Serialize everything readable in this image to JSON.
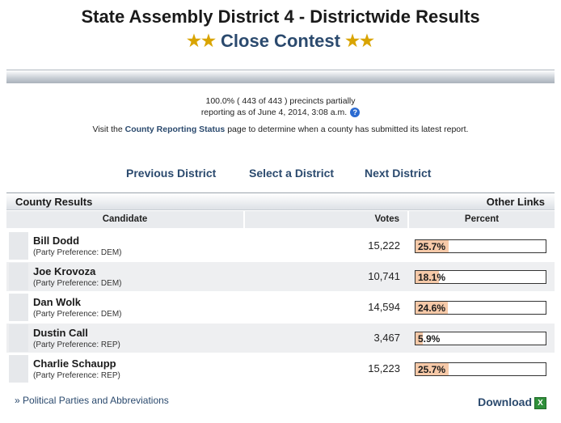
{
  "header": {
    "title": "State Assembly District 4 - Districtwide Results",
    "status": "Close Contest",
    "star_icon": "★★"
  },
  "reporting": {
    "line1": "100.0% ( 443 of 443 ) precincts partially",
    "line2": "reporting as of June 4, 2014, 3:08 a.m.",
    "visit_prefix": "Visit the ",
    "visit_link": "County Reporting Status",
    "visit_suffix": " page to determine when a county has submitted its latest report."
  },
  "nav": {
    "previous": "Previous District",
    "select": "Select a District",
    "next": "Next District"
  },
  "section_bar": {
    "left": "County Results",
    "right": "Other Links"
  },
  "table": {
    "headers": {
      "candidate": "Candidate",
      "votes": "Votes",
      "percent": "Percent"
    },
    "rows": [
      {
        "name": "Bill Dodd",
        "party": "(Party Preference: DEM)",
        "votes": "15,222",
        "percent": "25.7%",
        "pct": 25.7
      },
      {
        "name": "Joe Krovoza",
        "party": "(Party Preference: DEM)",
        "votes": "10,741",
        "percent": "18.1%",
        "pct": 18.1
      },
      {
        "name": "Dan Wolk",
        "party": "(Party Preference: DEM)",
        "votes": "14,594",
        "percent": "24.6%",
        "pct": 24.6
      },
      {
        "name": "Dustin Call",
        "party": "(Party Preference: REP)",
        "votes": "3,467",
        "percent": "5.9%",
        "pct": 5.9
      },
      {
        "name": "Charlie Schaupp",
        "party": "(Party Preference: REP)",
        "votes": "15,223",
        "percent": "25.7%",
        "pct": 25.7
      }
    ]
  },
  "footer": {
    "parties_link": "Political Parties and Abbreviations",
    "parties_prefix": "»",
    "download": "Download",
    "excel_icon": "X"
  },
  "colors": {
    "link": "#2b4a6e",
    "star": "#d9a400",
    "percent_fill": "#f6c9a8"
  }
}
